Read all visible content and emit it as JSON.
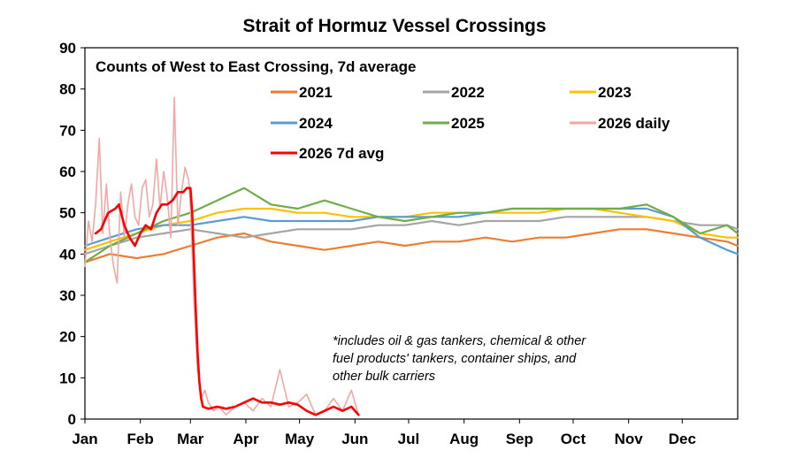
{
  "chart_data": {
    "type": "line",
    "title": "Strait of Hormuz Vessel Crossings",
    "subtitle": "Counts of West to East Crossing, 7d average",
    "note_lines": [
      "*includes oil & gas tankers, chemical & other",
      "fuel products' tankers, container ships, and",
      "other bulk carriers"
    ],
    "ylim": [
      0,
      90
    ],
    "yticks": [
      0,
      10,
      20,
      30,
      40,
      50,
      60,
      70,
      80,
      90
    ],
    "xlim_day_of_year": [
      1,
      366
    ],
    "xticks": [
      {
        "label": "Jan",
        "day": 1
      },
      {
        "label": "Feb",
        "day": 32
      },
      {
        "label": "Mar",
        "day": 60
      },
      {
        "label": "Apr",
        "day": 91
      },
      {
        "label": "May",
        "day": 121
      },
      {
        "label": "Jun",
        "day": 152
      },
      {
        "label": "Jul",
        "day": 182
      },
      {
        "label": "Aug",
        "day": 213
      },
      {
        "label": "Sep",
        "day": 244
      },
      {
        "label": "Oct",
        "day": 274
      },
      {
        "label": "Nov",
        "day": 305
      },
      {
        "label": "Dec",
        "day": 335
      }
    ],
    "legend_placement": "top-center",
    "series": [
      {
        "name": "2021",
        "color": "#ed7d31",
        "width": 2.2,
        "x": [
          1,
          15,
          30,
          45,
          60,
          75,
          90,
          105,
          120,
          135,
          150,
          165,
          180,
          195,
          210,
          225,
          240,
          255,
          270,
          285,
          300,
          315,
          330,
          345,
          360,
          366
        ],
        "y": [
          38,
          40,
          39,
          40,
          42,
          44,
          45,
          43,
          42,
          41,
          42,
          43,
          42,
          43,
          43,
          44,
          43,
          44,
          44,
          45,
          46,
          46,
          45,
          44,
          43,
          42
        ]
      },
      {
        "name": "2022",
        "color": "#a5a5a5",
        "width": 2.2,
        "x": [
          1,
          15,
          30,
          45,
          60,
          75,
          90,
          105,
          120,
          135,
          150,
          165,
          180,
          195,
          210,
          225,
          240,
          255,
          270,
          285,
          300,
          315,
          330,
          345,
          360,
          366
        ],
        "y": [
          40,
          42,
          44,
          45,
          46,
          45,
          44,
          45,
          46,
          46,
          46,
          47,
          47,
          48,
          47,
          48,
          48,
          48,
          49,
          49,
          49,
          49,
          48,
          47,
          47,
          46
        ]
      },
      {
        "name": "2023",
        "color": "#ffc000",
        "width": 2.2,
        "x": [
          1,
          15,
          30,
          45,
          60,
          75,
          90,
          105,
          120,
          135,
          150,
          165,
          180,
          195,
          210,
          225,
          240,
          255,
          270,
          285,
          300,
          315,
          330,
          345,
          360,
          366
        ],
        "y": [
          41,
          43,
          45,
          47,
          48,
          50,
          51,
          51,
          50,
          50,
          49,
          49,
          49,
          50,
          50,
          50,
          50,
          50,
          51,
          51,
          50,
          49,
          48,
          45,
          44,
          44
        ]
      },
      {
        "name": "2024",
        "color": "#5b9bd5",
        "width": 2.2,
        "x": [
          1,
          15,
          30,
          45,
          60,
          75,
          90,
          105,
          120,
          135,
          150,
          165,
          180,
          195,
          210,
          225,
          240,
          255,
          270,
          285,
          300,
          315,
          330,
          345,
          360,
          366
        ],
        "y": [
          42,
          44,
          46,
          47,
          47,
          48,
          49,
          48,
          48,
          48,
          48,
          49,
          49,
          49,
          49,
          50,
          51,
          51,
          51,
          51,
          51,
          51,
          49,
          44,
          41,
          40
        ]
      },
      {
        "name": "2025",
        "color": "#70ad47",
        "width": 2.2,
        "x": [
          1,
          15,
          30,
          45,
          60,
          75,
          90,
          105,
          120,
          135,
          150,
          165,
          180,
          195,
          210,
          225,
          240,
          255,
          270,
          285,
          300,
          315,
          330,
          345,
          360,
          366
        ],
        "y": [
          38,
          42,
          45,
          48,
          50,
          53,
          56,
          52,
          51,
          53,
          51,
          49,
          48,
          49,
          50,
          50,
          51,
          51,
          51,
          51,
          51,
          52,
          49,
          45,
          47,
          45
        ]
      },
      {
        "name": "2026 daily",
        "color": "#f4a6a6",
        "width": 1.6,
        "x": [
          1,
          3,
          5,
          7,
          9,
          11,
          13,
          15,
          17,
          19,
          21,
          23,
          25,
          27,
          29,
          31,
          33,
          35,
          37,
          39,
          41,
          43,
          45,
          47,
          49,
          51,
          53,
          55,
          57,
          59,
          60,
          62,
          64,
          66,
          68,
          70,
          73,
          76,
          80,
          85,
          90,
          95,
          100,
          105,
          110,
          115,
          120,
          125,
          130,
          135,
          140,
          145,
          150,
          154
        ],
        "y": [
          37,
          48,
          43,
          52,
          68,
          45,
          57,
          44,
          37,
          33,
          55,
          44,
          52,
          57,
          49,
          47,
          56,
          58,
          49,
          52,
          63,
          51,
          60,
          54,
          44,
          78,
          47,
          55,
          61,
          58,
          52,
          29,
          12,
          5,
          7,
          4,
          2,
          3,
          1,
          3,
          4,
          2,
          5,
          3,
          12,
          3,
          4,
          6,
          1,
          2,
          5,
          2,
          7,
          1
        ]
      },
      {
        "name": "2026 7d avg",
        "color": "#ff0000",
        "width": 2.6,
        "x": [
          7,
          10,
          14,
          18,
          20,
          23,
          26,
          29,
          32,
          35,
          38,
          41,
          44,
          47,
          50,
          53,
          56,
          58,
          60,
          61,
          62,
          63,
          64,
          65,
          66,
          67,
          70,
          75,
          80,
          85,
          90,
          95,
          100,
          105,
          110,
          115,
          120,
          125,
          130,
          135,
          140,
          145,
          150,
          154
        ],
        "y": [
          45,
          46,
          50,
          51,
          52,
          47,
          44,
          42,
          45,
          47,
          46,
          50,
          52,
          52,
          53,
          55,
          55,
          56,
          56,
          50,
          38,
          26,
          16,
          9,
          5,
          3,
          2.5,
          3,
          2.5,
          3,
          4,
          5,
          4,
          4,
          3.5,
          4,
          3.5,
          2,
          1,
          2,
          3,
          2,
          3,
          1
        ]
      }
    ],
    "legend": [
      {
        "name": "2021",
        "color": "#ed7d31"
      },
      {
        "name": "2022",
        "color": "#a5a5a5"
      },
      {
        "name": "2023",
        "color": "#ffc000"
      },
      {
        "name": "2024",
        "color": "#5b9bd5"
      },
      {
        "name": "2025",
        "color": "#70ad47"
      },
      {
        "name": "2026 daily",
        "color": "#f4a6a6"
      },
      {
        "name": "2026 7d avg",
        "color": "#ff0000"
      }
    ]
  }
}
